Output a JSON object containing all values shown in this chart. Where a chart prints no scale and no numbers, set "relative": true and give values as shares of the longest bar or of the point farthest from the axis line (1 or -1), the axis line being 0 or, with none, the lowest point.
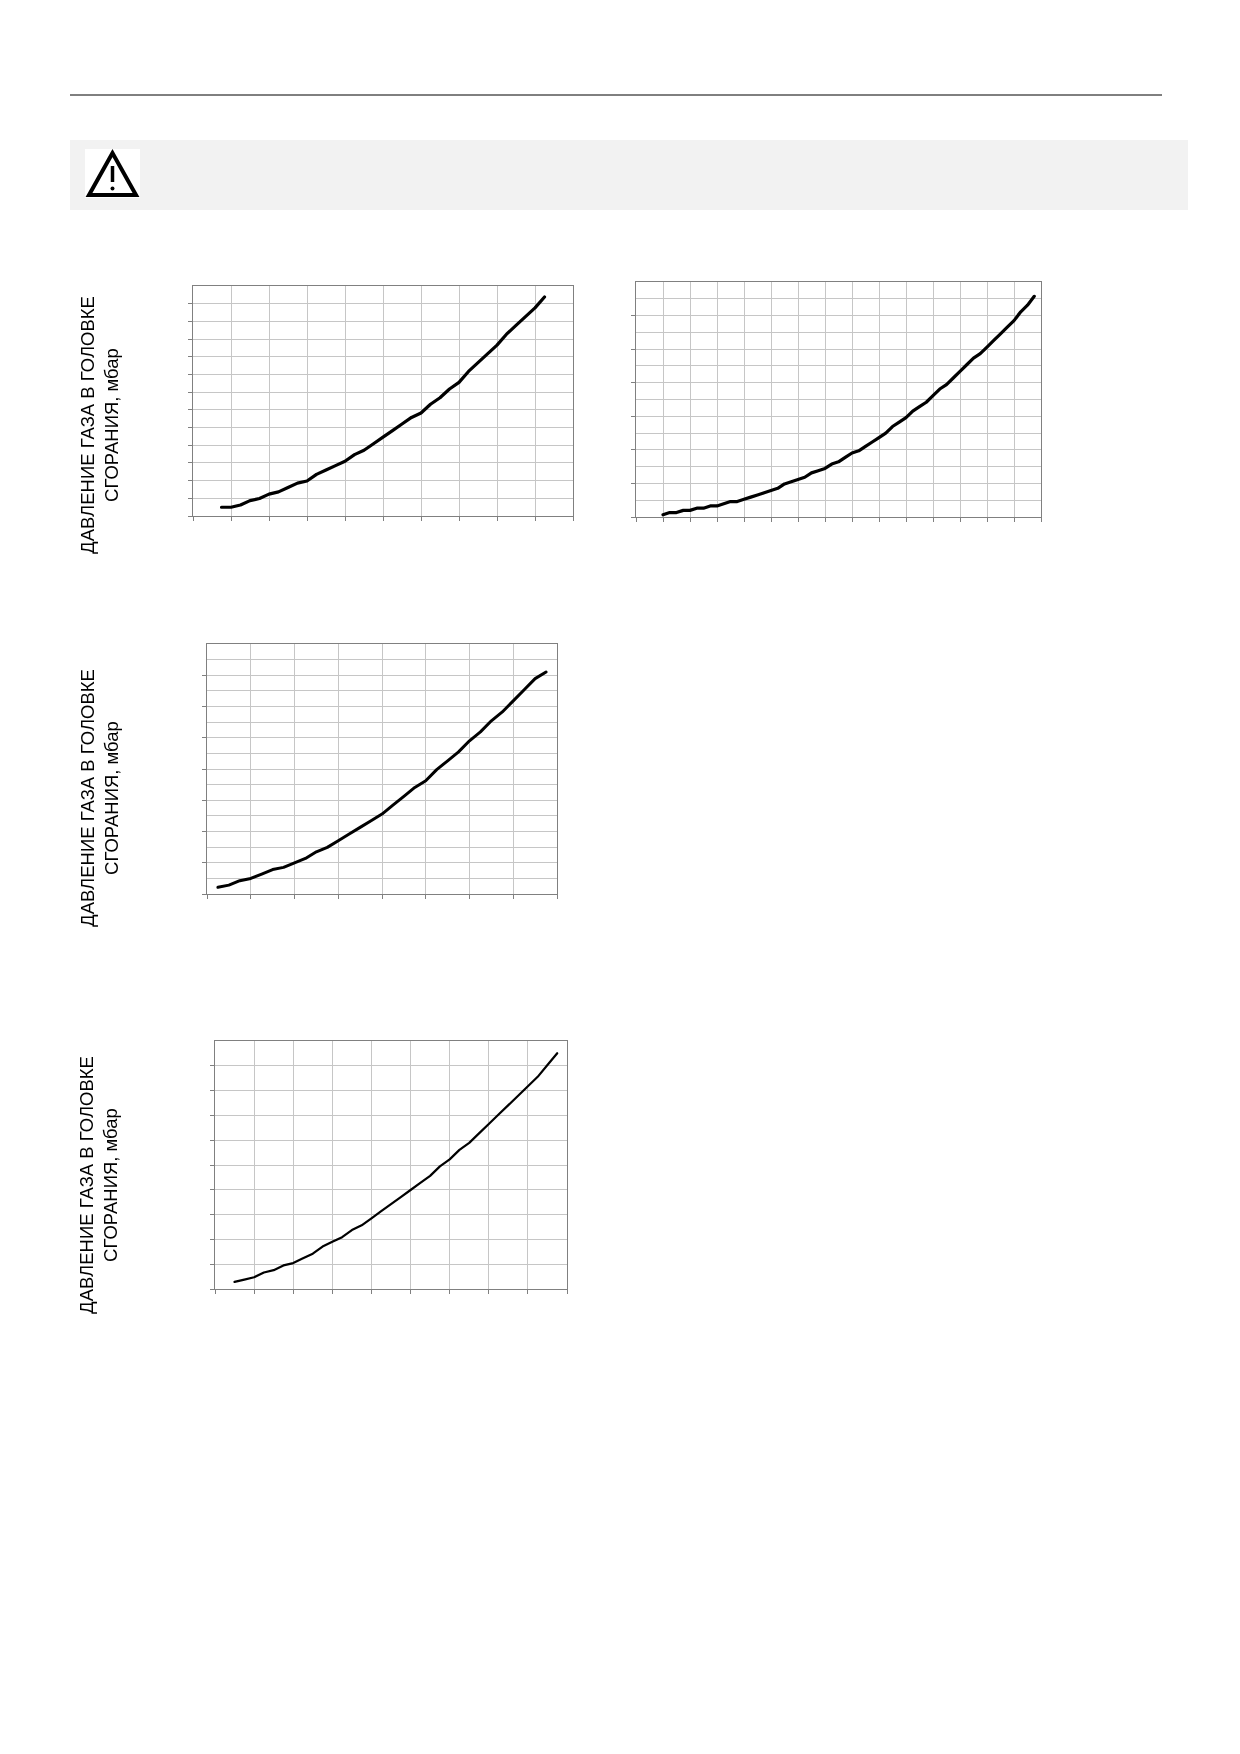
{
  "chart_data": [
    {
      "type": "line",
      "ylabel": "ДАВЛЕНИЕ ГАЗА В ГОЛОВКЕ СГОРАНИЯ, мбар",
      "relative": true,
      "grid": true,
      "categories": [
        null,
        null,
        null,
        null,
        null,
        null,
        null,
        null,
        null,
        null,
        null,
        null,
        null,
        null,
        null,
        null,
        null,
        null,
        null,
        null,
        null,
        null,
        null,
        null,
        null,
        null,
        null,
        null,
        null,
        null,
        null,
        null,
        null,
        null,
        null,
        null,
        null,
        null,
        null,
        null,
        null
      ],
      "series": [
        {
          "color": "#000000",
          "values": [
            null,
            null,
            null,
            0.04,
            0.04,
            0.05,
            0.07,
            0.08,
            0.1,
            0.11,
            0.13,
            0.15,
            0.16,
            0.19,
            0.21,
            0.23,
            0.25,
            0.28,
            0.3,
            0.33,
            0.36,
            0.39,
            0.42,
            0.45,
            0.47,
            0.51,
            0.54,
            0.58,
            0.61,
            0.66,
            0.7,
            0.74,
            0.78,
            0.83,
            0.87,
            0.91,
            0.95,
            1.0,
            null,
            null,
            null
          ]
        }
      ]
    },
    {
      "type": "line",
      "relative": true,
      "grid": true,
      "categories": [
        null,
        null,
        null,
        null,
        null,
        null,
        null,
        null,
        null,
        null,
        null,
        null,
        null,
        null,
        null,
        null,
        null,
        null,
        null,
        null,
        null,
        null,
        null,
        null,
        null,
        null,
        null,
        null,
        null,
        null,
        null,
        null,
        null,
        null,
        null,
        null,
        null,
        null,
        null,
        null,
        null,
        null,
        null,
        null,
        null,
        null,
        null,
        null,
        null,
        null,
        null,
        null,
        null,
        null,
        null,
        null,
        null,
        null,
        null,
        null,
        null
      ],
      "series": [
        {
          "color": "#000000",
          "values": [
            null,
            null,
            null,
            null,
            0.01,
            0.02,
            0.02,
            0.03,
            0.03,
            0.04,
            0.04,
            0.05,
            0.05,
            0.06,
            0.07,
            0.07,
            0.08,
            0.09,
            0.1,
            0.11,
            0.12,
            0.13,
            0.15,
            0.16,
            0.17,
            0.18,
            0.2,
            0.21,
            0.22,
            0.24,
            0.25,
            0.27,
            0.29,
            0.3,
            0.32,
            0.34,
            0.36,
            0.38,
            0.41,
            0.43,
            0.45,
            0.48,
            0.5,
            0.52,
            0.55,
            0.58,
            0.6,
            0.63,
            0.66,
            0.69,
            0.72,
            0.74,
            0.77,
            0.8,
            0.83,
            0.86,
            0.89,
            0.93,
            0.96,
            1.0,
            null
          ]
        }
      ]
    },
    {
      "type": "line",
      "ylabel": "ДАВЛЕНИЕ ГАЗА В ГОЛОВКЕ СГОРАНИЯ, мбар",
      "relative": true,
      "grid": true,
      "categories": [
        null,
        null,
        null,
        null,
        null,
        null,
        null,
        null,
        null,
        null,
        null,
        null,
        null,
        null,
        null,
        null,
        null,
        null,
        null,
        null,
        null,
        null,
        null,
        null,
        null,
        null,
        null,
        null,
        null,
        null,
        null,
        null,
        null
      ],
      "series": [
        {
          "color": "#000000",
          "values": [
            null,
            0.03,
            0.04,
            0.06,
            0.07,
            0.09,
            0.11,
            0.12,
            0.14,
            0.16,
            0.19,
            0.21,
            0.24,
            0.27,
            0.3,
            0.33,
            0.36,
            0.4,
            0.44,
            0.48,
            0.51,
            0.56,
            0.6,
            0.64,
            0.69,
            0.73,
            0.78,
            0.82,
            0.87,
            0.92,
            0.97,
            1.0,
            null
          ]
        }
      ]
    },
    {
      "type": "line",
      "ylabel": "ДАВЛЕНИЕ ГАЗА В ГОЛОВКЕ СГОРАНИЯ, мбар",
      "relative": true,
      "grid": true,
      "categories": [
        null,
        null,
        null,
        null,
        null,
        null,
        null,
        null,
        null,
        null,
        null,
        null,
        null,
        null,
        null,
        null,
        null,
        null,
        null,
        null,
        null,
        null,
        null,
        null,
        null,
        null,
        null,
        null,
        null,
        null,
        null,
        null,
        null,
        null,
        null,
        null,
        null
      ],
      "series": [
        {
          "color": "#000000",
          "values": [
            null,
            null,
            0.03,
            0.04,
            0.05,
            0.07,
            0.08,
            0.1,
            0.11,
            0.13,
            0.15,
            0.18,
            0.2,
            0.22,
            0.25,
            0.27,
            0.3,
            0.33,
            0.36,
            0.39,
            0.42,
            0.45,
            0.48,
            0.52,
            0.55,
            0.59,
            0.62,
            0.66,
            0.7,
            0.74,
            0.78,
            0.82,
            0.86,
            0.9,
            0.95,
            1.0,
            null
          ]
        }
      ]
    }
  ]
}
